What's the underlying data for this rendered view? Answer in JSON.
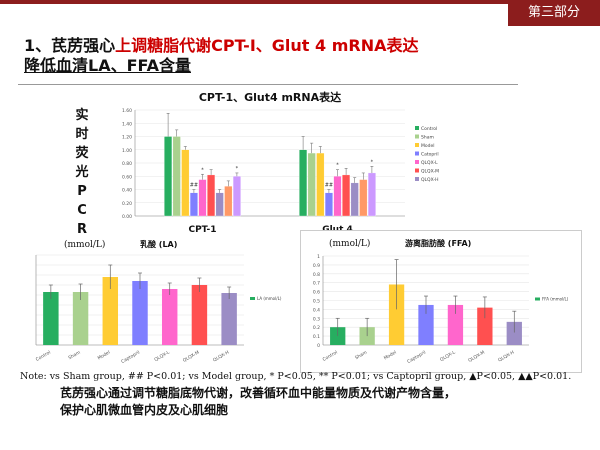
{
  "header": {
    "section_label": "第三部分"
  },
  "title": {
    "prefix": "1、芪苈强心",
    "suffix": "上调糖脂代谢CPT-Ⅰ、Glut 4 mRNA表达",
    "line2": "降低血清LA、FFA含量"
  },
  "side_label": [
    "实",
    "时",
    "荧",
    "光",
    "P",
    "C",
    "R"
  ],
  "colors": {
    "groups": [
      "#27ae60",
      "#a9d18e",
      "#ffcc33",
      "#7f7fff",
      "#ff66cc",
      "#ff5050",
      "#9b8dc5"
    ],
    "accent": "#8c1d1d"
  },
  "chart_data": [
    {
      "type": "bar",
      "title": "CPT-1、Glut4 mRNA表达",
      "categories": [
        "CPT-1",
        "Glut 4"
      ],
      "y_ticks": [
        "0.00",
        "0.20",
        "0.40",
        "0.60",
        "0.80",
        "1.00",
        "1.20",
        "1.40",
        "1.60"
      ],
      "ylim": [
        0,
        1.6
      ],
      "legend": [
        "Control",
        "Sham",
        "Model",
        "Catopril",
        "QLQX-L",
        "QLQX-M",
        "QLQX-H"
      ],
      "legend_position": "right",
      "series": [
        {
          "name": "Control",
          "values": [
            1.2,
            1.0
          ],
          "errors": [
            0.35,
            0.2
          ]
        },
        {
          "name": "Sham",
          "values": [
            1.2,
            0.95
          ],
          "errors": [
            0.1,
            0.15
          ]
        },
        {
          "name": "Model",
          "values": [
            1.0,
            0.95
          ],
          "errors": [
            0.05,
            0.1
          ]
        },
        {
          "name": "Catopril",
          "values": [
            0.35,
            0.35
          ],
          "errors": [
            0.05,
            0.05
          ]
        },
        {
          "name": "QLQX-L",
          "values": [
            0.55,
            0.6
          ],
          "errors": [
            0.08,
            0.1
          ]
        },
        {
          "name": "QLQX-M",
          "values": [
            0.62,
            0.62
          ],
          "errors": [
            0.08,
            0.1
          ]
        },
        {
          "name": "QLQX-H",
          "values": [
            0.35,
            0.5
          ],
          "errors": [
            0.05,
            0.08
          ]
        }
      ],
      "extra_bars": [
        {
          "values": [
            0.45,
            0.55
          ],
          "errors": [
            0.08,
            0.1
          ]
        },
        {
          "values": [
            0.6,
            0.65
          ],
          "errors": [
            0.05,
            0.1
          ]
        }
      ],
      "annotations": [
        {
          "text": "##",
          "category": 0,
          "bar": 3
        },
        {
          "text": "*",
          "category": 0,
          "bar": 4
        },
        {
          "text": "*",
          "category": 0,
          "bar": 8
        },
        {
          "text": "##",
          "category": 1,
          "bar": 3
        },
        {
          "text": "*",
          "category": 1,
          "bar": 4
        },
        {
          "text": "*",
          "category": 1,
          "bar": 8
        }
      ]
    },
    {
      "type": "bar",
      "title": "乳酸 (LA)",
      "unit_label": "(mmol/L)",
      "categories": [
        "Control",
        "Sham",
        "Model",
        "Captopril",
        "QLQX-L",
        "QLQX-M",
        "QLQX-H"
      ],
      "values": [
        5.3,
        5.3,
        6.8,
        6.4,
        5.6,
        6.0,
        5.2
      ],
      "errors": [
        0.7,
        0.8,
        1.2,
        0.8,
        0.6,
        0.7,
        0.6
      ],
      "ylim": [
        0,
        9
      ],
      "legend": [
        "LA (mmol/L)"
      ]
    },
    {
      "type": "bar",
      "title": "游离脂肪酸 (FFA)",
      "unit_label": "(mmol/L)",
      "categories": [
        "Control",
        "Sham",
        "Model",
        "Captopril",
        "QLQX-L",
        "QLQX-M",
        "QLQX-H"
      ],
      "y_ticks": [
        "0",
        "0.1",
        "0.2",
        "0.3",
        "0.4",
        "0.5",
        "0.6",
        "0.7",
        "0.8",
        "0.9",
        "1"
      ],
      "values": [
        0.2,
        0.2,
        0.68,
        0.45,
        0.45,
        0.42,
        0.26
      ],
      "errors": [
        0.1,
        0.1,
        0.28,
        0.1,
        0.1,
        0.12,
        0.12
      ],
      "ylim": [
        0,
        1
      ],
      "legend": [
        "FFA (mmol/L)"
      ]
    }
  ],
  "note": "Note: vs Sham group, ## P<0.01; vs Model group, * P<0.05, ** P<0.01; vs Captopril group, ▲P<0.05, ▲▲P<0.01.",
  "summary": {
    "line1": "芪苈强心通过调节糖脂底物代谢，改善循环血中能量物质及代谢产物含量，",
    "line2": "保护心肌微血管内皮及心肌细胞"
  }
}
